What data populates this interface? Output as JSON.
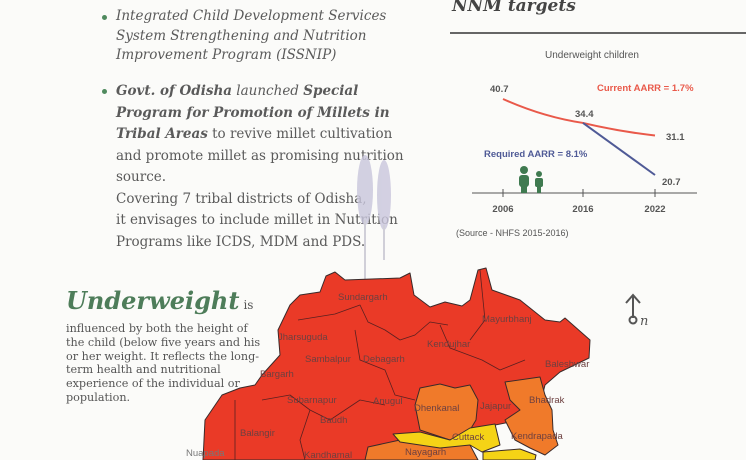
{
  "programs": {
    "item1": "Integrated Child Development Services System Strengthening and Nutrition Improvement Program (ISSNIP)",
    "item2": {
      "govt": "Govt. of Odisha",
      "launched": " launched ",
      "program": "Special Program for Promotion of Millets in Tribal Areas",
      "rest": " to revive millet cultivation and promote millet as promising nutrition source.",
      "covering1": "Covering 7 tribal districts of Odisha,",
      "covering2": "it envisages to include millet in Nutrition",
      "covering3": "Programs like ICDS, MDM and PDS."
    }
  },
  "nnm": {
    "title": "NNM targets",
    "source": "(Source - NHFS 2015-2016)"
  },
  "chart_data": {
    "type": "line",
    "title": "Underweight children",
    "categories": [
      "2006",
      "2016",
      "2022"
    ],
    "series": [
      {
        "name": "Current AARR = 1.7%",
        "x": [
          "2006",
          "2016",
          "2022"
        ],
        "values": [
          40.7,
          34.4,
          31.1
        ],
        "color": "#e9594a"
      },
      {
        "name": "Required AARR = 8.1%",
        "x": [
          "2016",
          "2022"
        ],
        "values": [
          34.4,
          20.7
        ],
        "color": "#4f5a96"
      }
    ],
    "data_labels": [
      "40.7",
      "34.4",
      "31.1",
      "20.7"
    ]
  },
  "underweight": {
    "title": "Underweight",
    "is": "is",
    "description": "influenced by both the height of the child (below five years and his or her weight. It reflects the long-term health and nutritional experience of the individual or population."
  },
  "map": {
    "districts": [
      "Sundargarh",
      "Mayurbhanj",
      "Jharsuguda",
      "Kendujhar",
      "Sambalpur",
      "Debagarh",
      "Bargarh",
      "Baleshwar",
      "Subarnapur",
      "Anugul",
      "Dhenkanal",
      "Jajapur",
      "Bhadrak",
      "Baudh",
      "Balangir",
      "Cuttack",
      "Kendrapada",
      "Nuapada",
      "Kandhamal",
      "Nayagarh"
    ],
    "colors": {
      "high": "#ea3a27",
      "medium": "#f07a2a",
      "low": "#f5d316"
    },
    "north_label": "n"
  }
}
